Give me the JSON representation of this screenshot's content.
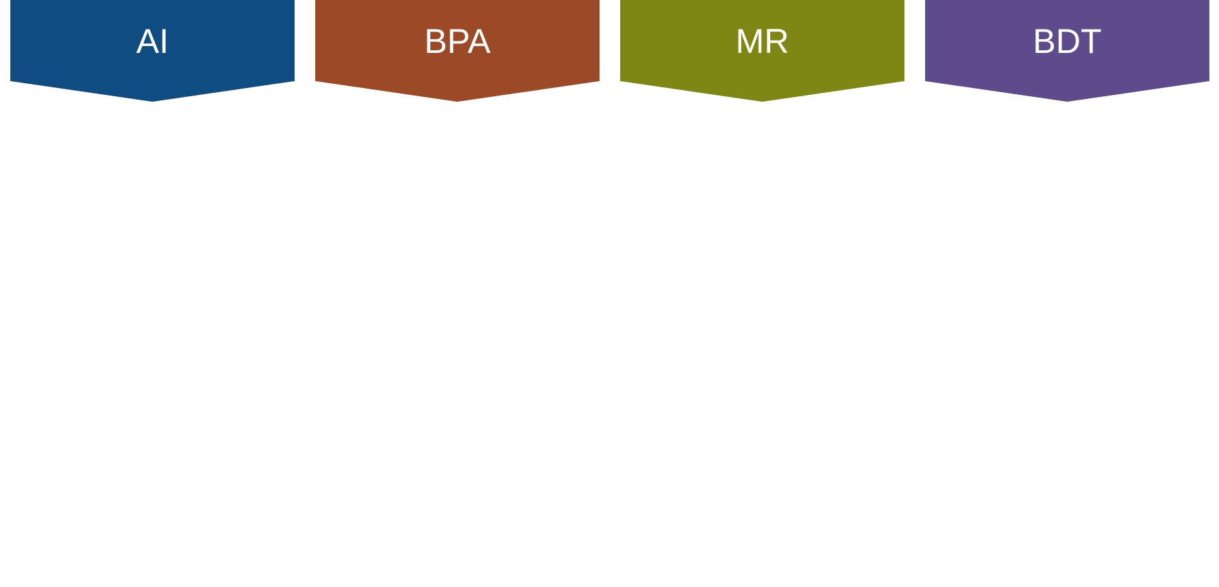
{
  "banners": [
    {
      "label": "AI",
      "color": "#0f4c81"
    },
    {
      "label": "BPA",
      "color": "#9c4925"
    },
    {
      "label": "MR",
      "color": "#7e8614"
    },
    {
      "label": "BDT",
      "color": "#5e4b8b"
    }
  ]
}
